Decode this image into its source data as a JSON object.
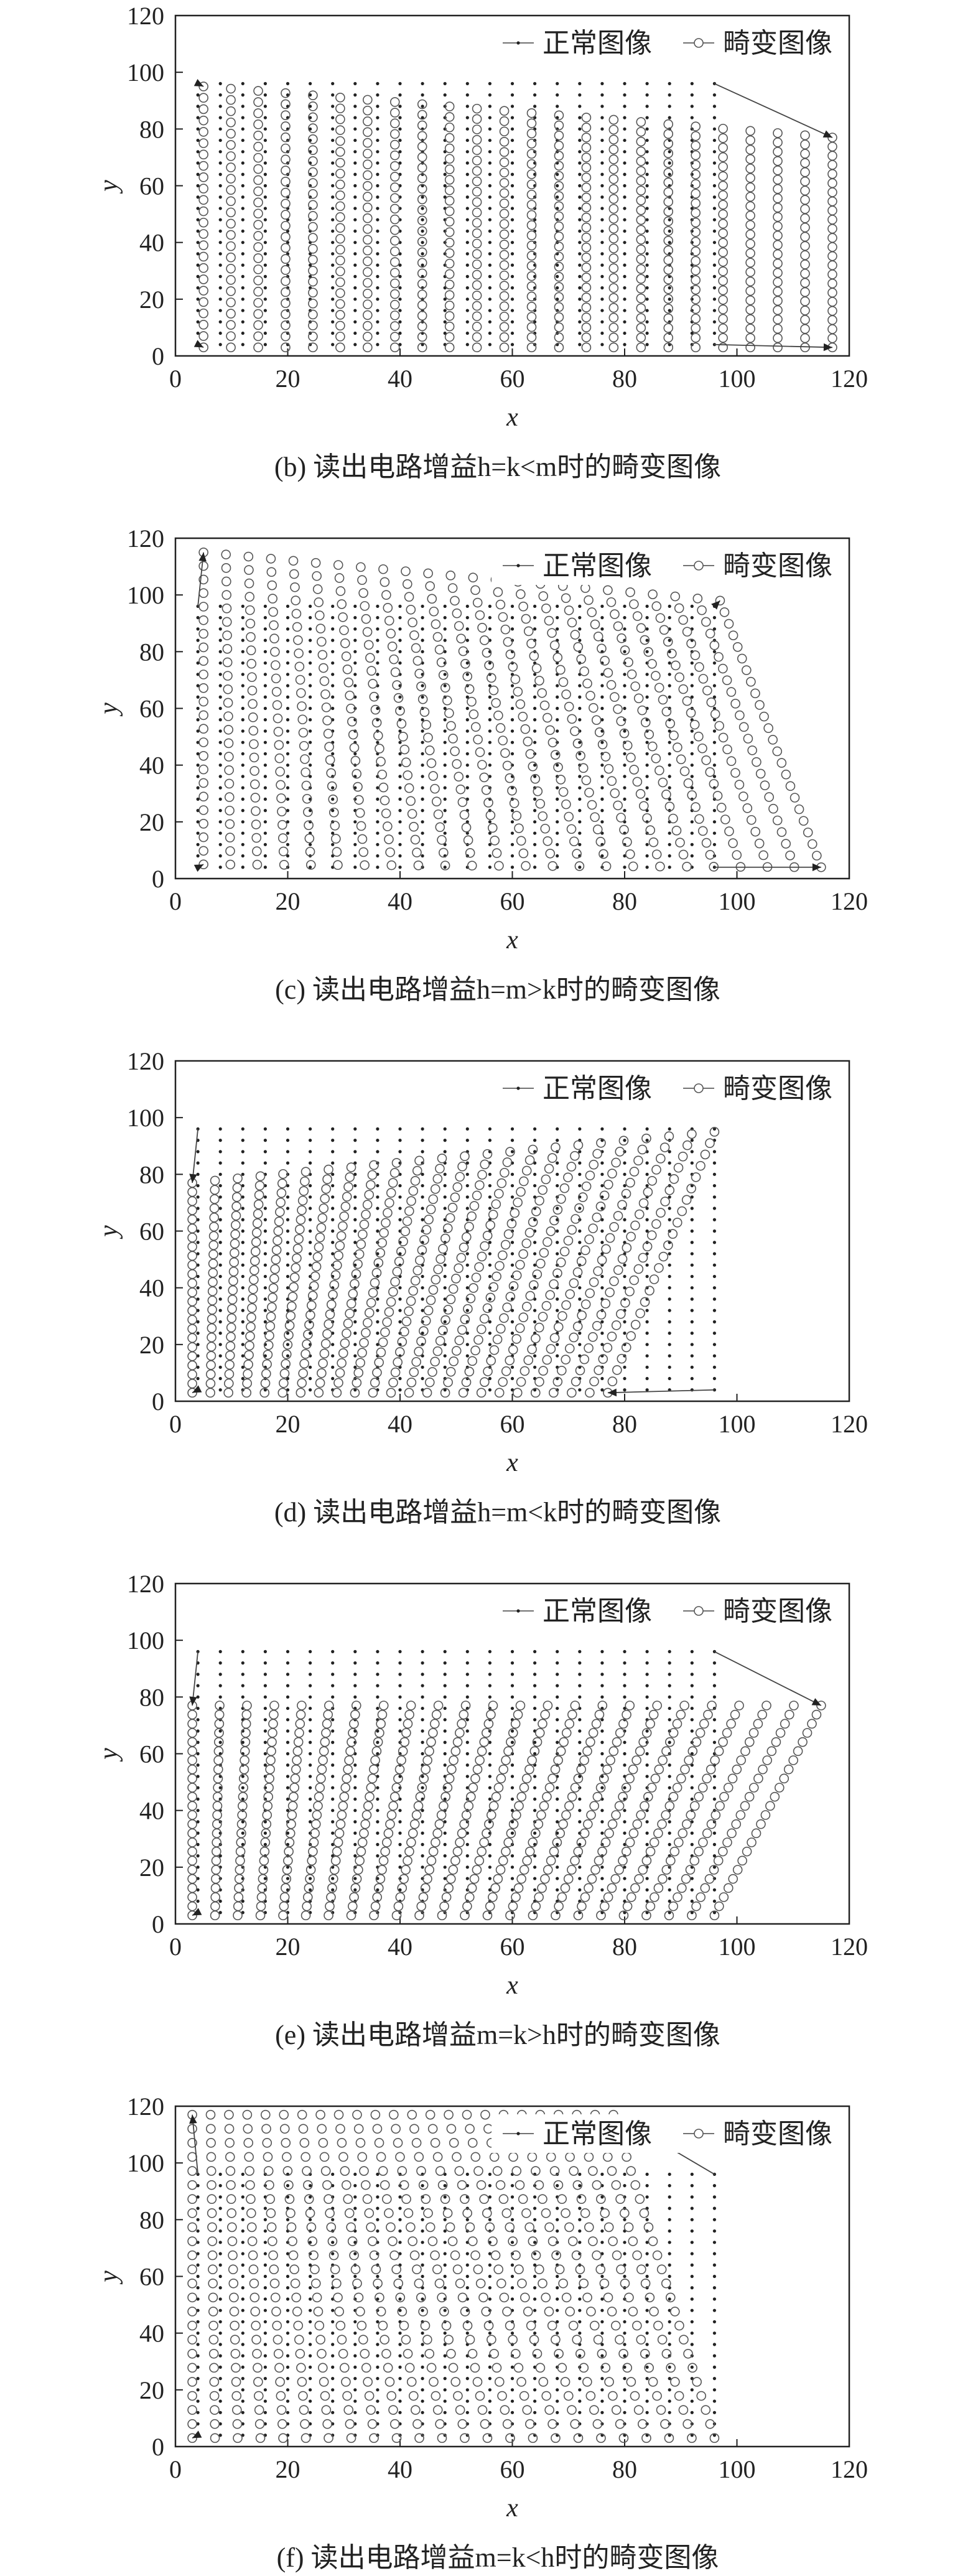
{
  "legend": {
    "normal": "正常图像",
    "distorted": "畸变图像"
  },
  "chart_data": [
    {
      "type": "scatter",
      "caption": "(b) 读出电路增益h=k<m时的畸变图像",
      "xlabel": "x",
      "ylabel": "y",
      "xlim": [
        0,
        120
      ],
      "ylim": [
        0,
        120
      ],
      "xticks": [
        0,
        20,
        40,
        60,
        80,
        100,
        120
      ],
      "yticks": [
        0,
        20,
        40,
        60,
        80,
        100,
        120
      ],
      "legend_position": "top-right",
      "grid": false,
      "series": [
        {
          "name": "正常图像",
          "marker": "dot",
          "grid": {
            "x_from": 4,
            "x_to": 96,
            "x_step": 4,
            "y_from": 4,
            "y_to": 96,
            "y_step": 4
          }
        },
        {
          "name": "畸变图像",
          "marker": "circle",
          "corners": {
            "bl": [
              5,
              3
            ],
            "br": [
              117,
              3
            ],
            "tl": [
              5,
              95
            ],
            "tr": [
              117,
              77
            ]
          },
          "count": 24
        }
      ]
    },
    {
      "type": "scatter",
      "caption": "(c) 读出电路增益h=m>k时的畸变图像",
      "xlabel": "x",
      "ylabel": "y",
      "xlim": [
        0,
        120
      ],
      "ylim": [
        0,
        120
      ],
      "xticks": [
        0,
        20,
        40,
        60,
        80,
        100,
        120
      ],
      "yticks": [
        0,
        20,
        40,
        60,
        80,
        100,
        120
      ],
      "legend_position": "top-right",
      "grid": false,
      "series": [
        {
          "name": "正常图像",
          "marker": "dot",
          "grid": {
            "x_from": 4,
            "x_to": 96,
            "x_step": 4,
            "y_from": 4,
            "y_to": 96,
            "y_step": 4
          }
        },
        {
          "name": "畸变图像",
          "marker": "circle",
          "corners": {
            "bl": [
              5,
              5
            ],
            "br": [
              115,
              4
            ],
            "tl": [
              5,
              115
            ],
            "tr": [
              97,
              98
            ]
          },
          "count": 24
        }
      ]
    },
    {
      "type": "scatter",
      "caption": "(d) 读出电路增益h=m<k时的畸变图像",
      "xlabel": "x",
      "ylabel": "y",
      "xlim": [
        0,
        120
      ],
      "ylim": [
        0,
        120
      ],
      "xticks": [
        0,
        20,
        40,
        60,
        80,
        100,
        120
      ],
      "yticks": [
        0,
        20,
        40,
        60,
        80,
        100,
        120
      ],
      "legend_position": "top-right",
      "grid": false,
      "series": [
        {
          "name": "正常图像",
          "marker": "dot",
          "grid": {
            "x_from": 4,
            "x_to": 96,
            "x_step": 4,
            "y_from": 4,
            "y_to": 96,
            "y_step": 4
          }
        },
        {
          "name": "畸变图像",
          "marker": "circle",
          "corners": {
            "bl": [
              3,
              3
            ],
            "br": [
              77,
              3
            ],
            "tl": [
              3,
              77
            ],
            "tr": [
              96,
              95
            ]
          },
          "count": 24
        }
      ]
    },
    {
      "type": "scatter",
      "caption": "(e) 读出电路增益m=k>h时的畸变图像",
      "xlabel": "x",
      "ylabel": "y",
      "xlim": [
        0,
        120
      ],
      "ylim": [
        0,
        120
      ],
      "xticks": [
        0,
        20,
        40,
        60,
        80,
        100,
        120
      ],
      "yticks": [
        0,
        20,
        40,
        60,
        80,
        100,
        120
      ],
      "legend_position": "top-right",
      "grid": false,
      "series": [
        {
          "name": "正常图像",
          "marker": "dot",
          "grid": {
            "x_from": 4,
            "x_to": 96,
            "x_step": 4,
            "y_from": 4,
            "y_to": 96,
            "y_step": 4
          }
        },
        {
          "name": "畸变图像",
          "marker": "circle",
          "corners": {
            "bl": [
              3,
              3
            ],
            "br": [
              96,
              3
            ],
            "tl": [
              3,
              77
            ],
            "tr": [
              115,
              77
            ]
          },
          "count": 24
        }
      ]
    },
    {
      "type": "scatter",
      "caption": "(f) 读出电路增益m=k<h时的畸变图像",
      "xlabel": "x",
      "ylabel": "y",
      "xlim": [
        0,
        120
      ],
      "ylim": [
        0,
        120
      ],
      "xticks": [
        0,
        20,
        40,
        60,
        80,
        100,
        120
      ],
      "yticks": [
        0,
        20,
        40,
        60,
        80,
        100,
        120
      ],
      "legend_position": "top-right",
      "grid": false,
      "series": [
        {
          "name": "正常图像",
          "marker": "dot",
          "grid": {
            "x_from": 4,
            "x_to": 96,
            "x_step": 4,
            "y_from": 4,
            "y_to": 96,
            "y_step": 4
          }
        },
        {
          "name": "畸变图像",
          "marker": "circle",
          "corners": {
            "bl": [
              3,
              3
            ],
            "br": [
              96,
              3
            ],
            "tl": [
              3,
              117
            ],
            "tr": [
              78,
              117
            ]
          },
          "count": 24
        }
      ]
    }
  ]
}
